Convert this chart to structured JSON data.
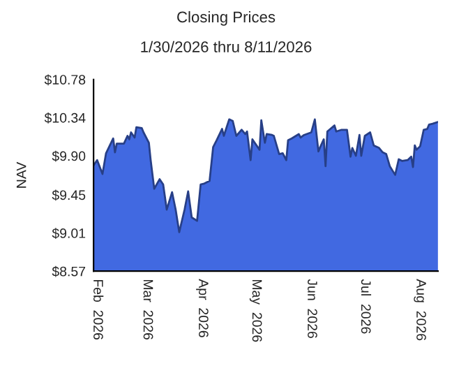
{
  "chart_data": {
    "type": "area",
    "title": "Closing Prices",
    "subtitle": "1/30/2026 thru 8/11/2026",
    "ylabel": "NAV",
    "x": [
      "2026-01-30",
      "2026-02-01",
      "2026-02-04",
      "2026-02-06",
      "2026-02-10",
      "2026-02-11",
      "2026-02-12",
      "2026-02-16",
      "2026-02-18",
      "2026-02-19",
      "2026-02-20",
      "2026-02-22",
      "2026-02-23",
      "2026-02-26",
      "2026-02-27",
      "2026-03-02",
      "2026-03-03",
      "2026-03-05",
      "2026-03-08",
      "2026-03-10",
      "2026-03-12",
      "2026-03-15",
      "2026-03-17",
      "2026-03-19",
      "2026-03-22",
      "2026-03-24",
      "2026-03-26",
      "2026-03-29",
      "2026-03-31",
      "2026-04-02",
      "2026-04-05",
      "2026-04-07",
      "2026-04-09",
      "2026-04-12",
      "2026-04-13",
      "2026-04-16",
      "2026-04-18",
      "2026-04-20",
      "2026-04-23",
      "2026-04-25",
      "2026-04-26",
      "2026-04-28",
      "2026-04-29",
      "2026-05-03",
      "2026-05-04",
      "2026-05-06",
      "2026-05-07",
      "2026-05-10",
      "2026-05-11",
      "2026-05-14",
      "2026-05-16",
      "2026-05-18",
      "2026-05-19",
      "2026-05-21",
      "2026-05-25",
      "2026-05-26",
      "2026-05-28",
      "2026-06-01",
      "2026-06-03",
      "2026-06-05",
      "2026-06-06",
      "2026-06-08",
      "2026-06-09",
      "2026-06-10",
      "2026-06-14",
      "2026-06-15",
      "2026-06-18",
      "2026-06-21",
      "2026-06-23",
      "2026-06-24",
      "2026-06-26",
      "2026-06-28",
      "2026-06-29",
      "2026-07-01",
      "2026-07-04",
      "2026-07-06",
      "2026-07-09",
      "2026-07-11",
      "2026-07-13",
      "2026-07-15",
      "2026-07-18",
      "2026-07-20",
      "2026-07-22",
      "2026-07-25",
      "2026-07-27",
      "2026-07-28",
      "2026-07-29",
      "2026-07-30",
      "2026-08-01",
      "2026-08-03",
      "2026-08-05",
      "2026-08-06",
      "2026-08-08",
      "2026-08-11"
    ],
    "series": [
      {
        "color": "#4169e1",
        "values": [
          9.79,
          9.85,
          9.69,
          9.93,
          10.1,
          9.94,
          10.04,
          10.04,
          10.13,
          10.09,
          10.17,
          10.11,
          10.23,
          10.22,
          10.17,
          10.05,
          9.85,
          9.52,
          9.63,
          9.57,
          9.28,
          9.48,
          9.28,
          9.02,
          9.28,
          9.49,
          9.19,
          9.15,
          9.57,
          9.58,
          9.61,
          10.0,
          10.08,
          10.21,
          10.13,
          10.32,
          10.3,
          10.13,
          10.2,
          10.15,
          10.18,
          9.85,
          10.09,
          9.97,
          10.31,
          10.05,
          10.15,
          10.14,
          10.13,
          9.92,
          9.93,
          9.85,
          10.08,
          10.1,
          10.15,
          10.11,
          10.14,
          10.17,
          10.32,
          9.95,
          10.0,
          10.09,
          9.78,
          10.18,
          10.25,
          10.18,
          10.2,
          10.2,
          9.89,
          9.99,
          9.9,
          10.14,
          9.9,
          10.13,
          10.17,
          10.02,
          9.99,
          9.94,
          9.92,
          9.78,
          9.68,
          9.86,
          9.84,
          9.85,
          9.89,
          9.77,
          10.02,
          9.97,
          10.01,
          10.2,
          10.21,
          10.26,
          10.27,
          10.29
        ]
      }
    ],
    "xlim": [
      "2026-01-30",
      "2026-08-11"
    ],
    "xticks": [
      {
        "value": "2026-02-01",
        "label": "Feb  2026"
      },
      {
        "value": "2026-03-01",
        "label": "Mar  2026"
      },
      {
        "value": "2026-04-01",
        "label": "Apr  2026"
      },
      {
        "value": "2026-05-01",
        "label": "May  2026"
      },
      {
        "value": "2026-06-01",
        "label": "Jun  2026"
      },
      {
        "value": "2026-07-01",
        "label": "Jul  2026"
      },
      {
        "value": "2026-08-01",
        "label": "Aug  2026"
      }
    ],
    "ylim": [
      8.57,
      10.78
    ],
    "yticks": [
      {
        "value": 8.57,
        "label": "$8.57"
      },
      {
        "value": 9.01,
        "label": "$9.01"
      },
      {
        "value": 9.45,
        "label": "$9.45"
      },
      {
        "value": 9.9,
        "label": "$9.90"
      },
      {
        "value": 10.34,
        "label": "$10.34"
      },
      {
        "value": 10.78,
        "label": "$10.78"
      }
    ],
    "grid": false
  }
}
